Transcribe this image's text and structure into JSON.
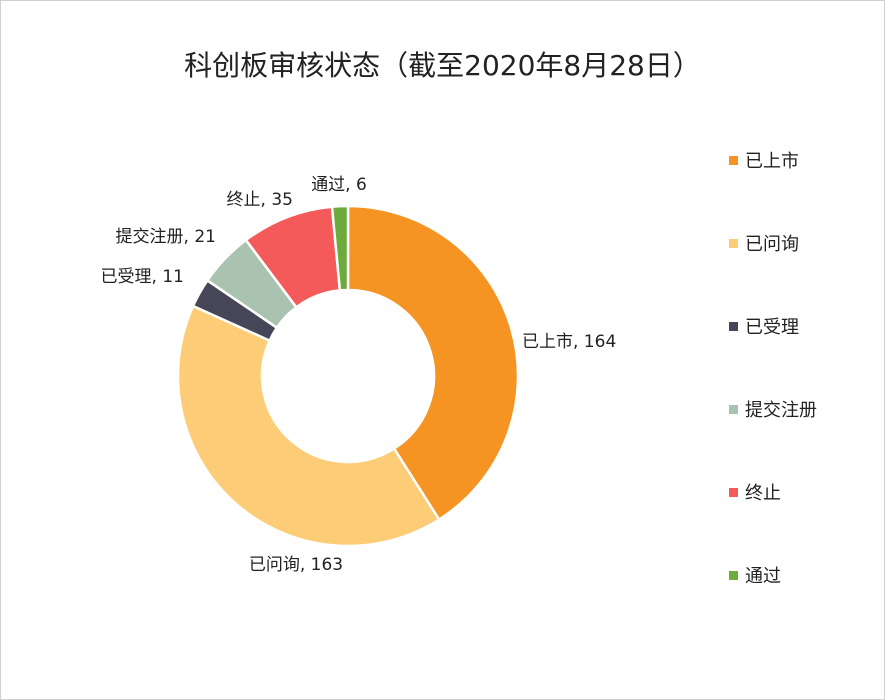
{
  "chart_data": {
    "type": "pie",
    "variant": "donut",
    "title": "科创板审核状态（截至2020年8月28日）",
    "categories": [
      "已上市",
      "已问询",
      "已受理",
      "提交注册",
      "终止",
      "通过"
    ],
    "values": [
      164,
      163,
      11,
      21,
      35,
      6
    ],
    "data_labels": [
      "已上市, 164",
      "已问询, 163",
      "已受理, 11",
      "提交注册, 21",
      "终止, 35",
      "通过, 6"
    ],
    "colors": [
      "#f59323",
      "#fdcc76",
      "#464658",
      "#a9c3b0",
      "#f45a5a",
      "#6dab3c"
    ],
    "legend": {
      "position": "right",
      "entries": [
        "已上市",
        "已问询",
        "已受理",
        "提交注册",
        "终止",
        "通过"
      ]
    }
  }
}
